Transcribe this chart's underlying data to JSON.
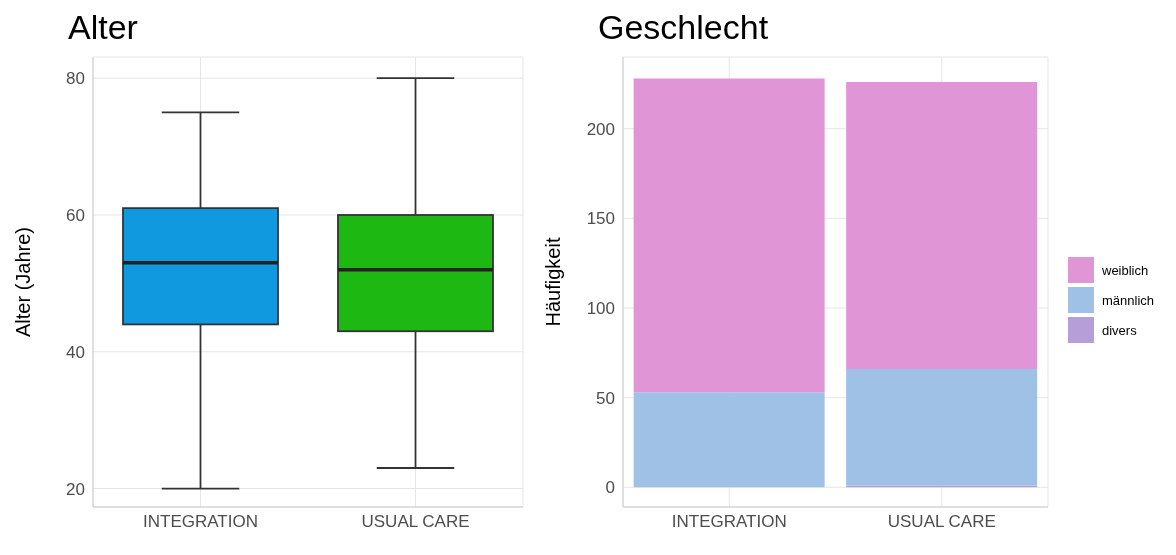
{
  "chart_data": [
    {
      "type": "box",
      "title": "Alter",
      "ylabel": "Alter (Jahre)",
      "categories": [
        "INTEGRATION",
        "USUAL CARE"
      ],
      "colors": [
        "#1199e0",
        "#1db811"
      ],
      "boxes": [
        {
          "low": 20,
          "q1": 44,
          "median": 53,
          "q3": 61,
          "high": 75
        },
        {
          "low": 23,
          "q1": 43,
          "median": 52,
          "q3": 60,
          "high": 80
        }
      ],
      "ylim": [
        17.3,
        83.1
      ],
      "yticks": [
        20,
        40,
        60,
        80
      ],
      "grid": true
    },
    {
      "type": "bar",
      "stacked": true,
      "title": "Geschlecht",
      "ylabel": "Häufigkeit",
      "categories": [
        "INTEGRATION",
        "USUAL CARE"
      ],
      "series": [
        {
          "name": "divers",
          "color": "#b69fd8",
          "values": [
            0,
            1
          ]
        },
        {
          "name": "männlich",
          "color": "#9fc1e6",
          "values": [
            53,
            65
          ]
        },
        {
          "name": "weiblich",
          "color": "#e096d6",
          "values": [
            175,
            160
          ]
        }
      ],
      "ylim": [
        -11,
        240
      ],
      "yticks": [
        0,
        50,
        100,
        150,
        200
      ],
      "grid": true,
      "legend": "right"
    }
  ]
}
